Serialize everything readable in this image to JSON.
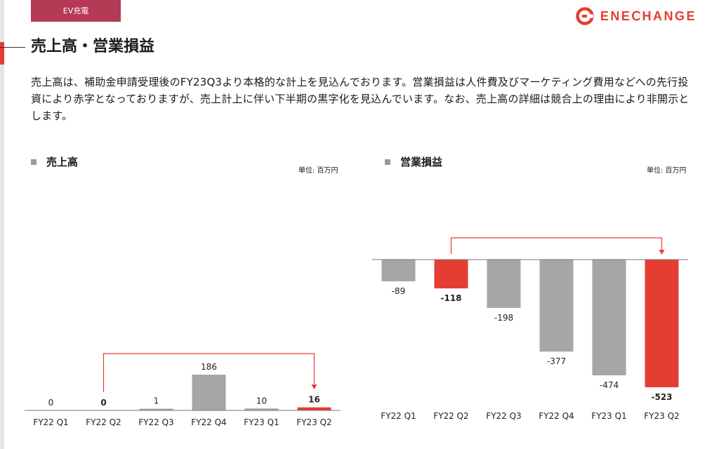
{
  "section_tab": "EV充電",
  "logo": {
    "text": "ENEⅭHANGE",
    "icon": "enechange-logo-icon",
    "color": "#e53d32"
  },
  "page_title": "売上高・営業損益",
  "description": "売上高は、補助金申請受理後のFY23Q3より本格的な計上を見込んでおります。営業損益は人件費及びマーケティング費用などへの先行投資により赤字となっておりますが、売上計上に伴い下半期の黒字化を見込んでいます。なお、売上高の詳細は競合上の理由により非開示とします。",
  "colors": {
    "accent": "#e53d32",
    "neutral_bar": "#a6a6a6",
    "section_tab": "#b53a55"
  },
  "chart_data": [
    {
      "type": "bar",
      "title": "売上高",
      "unit_label": "単位: 百万円",
      "categories": [
        "FY22 Q1",
        "FY22 Q2",
        "FY22 Q3",
        "FY22 Q4",
        "FY23 Q1",
        "FY23 Q2"
      ],
      "values": [
        0,
        0,
        1,
        186,
        10,
        16
      ],
      "value_labels": [
        "0",
        "0",
        "1",
        "186",
        "10",
        "16"
      ],
      "highlight": [
        false,
        true,
        false,
        false,
        false,
        true
      ],
      "bold_labels": [
        false,
        true,
        false,
        false,
        false,
        true
      ],
      "ylim": [
        0,
        186
      ],
      "comparison_arrow": {
        "from": "FY22 Q2",
        "to": "FY23 Q2"
      },
      "grid": false
    },
    {
      "type": "bar",
      "title": "営業損益",
      "unit_label": "単位: 百万円",
      "categories": [
        "FY22 Q1",
        "FY22 Q2",
        "FY22 Q3",
        "FY22 Q4",
        "FY23 Q1",
        "FY23 Q2"
      ],
      "values": [
        -89,
        -118,
        -198,
        -377,
        -474,
        -523
      ],
      "value_labels": [
        "-89",
        "-118",
        "-198",
        "-377",
        "-474",
        "-523"
      ],
      "highlight": [
        false,
        true,
        false,
        false,
        false,
        true
      ],
      "bold_labels": [
        false,
        true,
        false,
        false,
        false,
        true
      ],
      "ylim": [
        -523,
        0
      ],
      "comparison_arrow": {
        "from": "FY22 Q2",
        "to": "FY23 Q2"
      },
      "grid": false
    }
  ]
}
